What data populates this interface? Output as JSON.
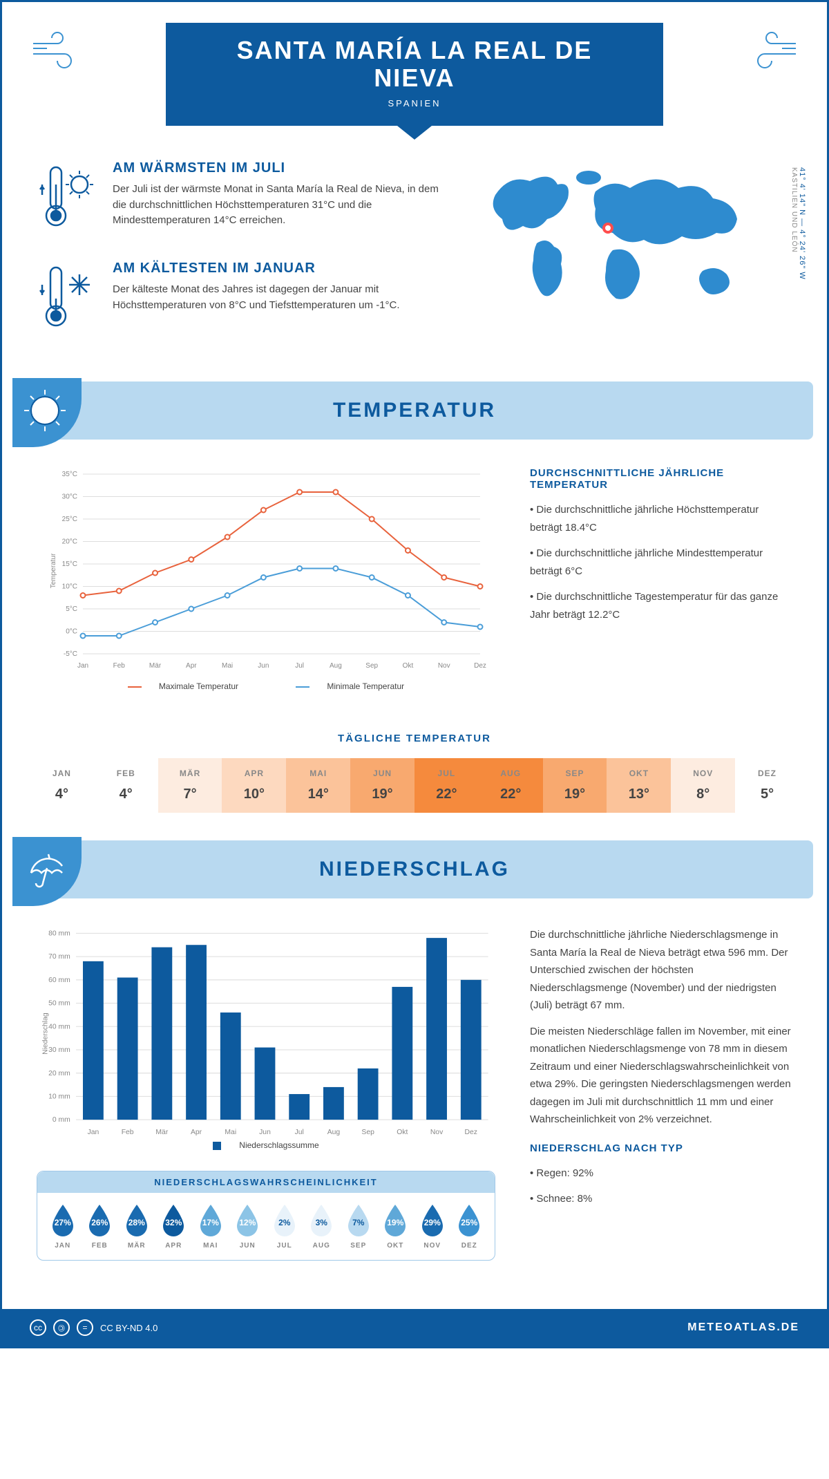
{
  "header": {
    "title": "SANTA MARÍA LA REAL DE NIEVA",
    "country": "SPANIEN",
    "coords": "41° 4' 14\" N — 4° 24' 26\" W",
    "region": "KASTILIEN UND LEÓN"
  },
  "warmest": {
    "title": "AM WÄRMSTEN IM JULI",
    "text": "Der Juli ist der wärmste Monat in Santa María la Real de Nieva, in dem die durchschnittlichen Höchsttemperaturen 31°C und die Mindesttemperaturen 14°C erreichen."
  },
  "coldest": {
    "title": "AM KÄLTESTEN IM JANUAR",
    "text": "Der kälteste Monat des Jahres ist dagegen der Januar mit Höchsttemperaturen von 8°C und Tiefsttemperaturen um -1°C."
  },
  "temp_section": {
    "heading": "TEMPERATUR",
    "chart": {
      "months": [
        "Jan",
        "Feb",
        "Mär",
        "Apr",
        "Mai",
        "Jun",
        "Jul",
        "Aug",
        "Sep",
        "Okt",
        "Nov",
        "Dez"
      ],
      "max_values": [
        8,
        9,
        13,
        16,
        21,
        27,
        31,
        31,
        25,
        18,
        12,
        10
      ],
      "min_values": [
        -1,
        -1,
        2,
        5,
        8,
        12,
        14,
        14,
        12,
        8,
        2,
        1
      ],
      "ymin": -5,
      "ymax": 35,
      "ystep": 5,
      "max_color": "#e8623c",
      "min_color": "#4a9dd8",
      "grid_color": "#dddddd",
      "ylabel": "Temperatur",
      "legend_max": "Maximale Temperatur",
      "legend_min": "Minimale Temperatur"
    },
    "side_title": "DURCHSCHNITTLICHE JÄHRLICHE TEMPERATUR",
    "side_bullets": [
      "• Die durchschnittliche jährliche Höchsttemperatur beträgt 18.4°C",
      "• Die durchschnittliche jährliche Mindesttemperatur beträgt 6°C",
      "• Die durchschnittliche Tagestemperatur für das ganze Jahr beträgt 12.2°C"
    ],
    "daily_title": "TÄGLICHE TEMPERATUR",
    "daily": {
      "months": [
        "JAN",
        "FEB",
        "MÄR",
        "APR",
        "MAI",
        "JUN",
        "JUL",
        "AUG",
        "SEP",
        "OKT",
        "NOV",
        "DEZ"
      ],
      "values": [
        "4°",
        "4°",
        "7°",
        "10°",
        "14°",
        "19°",
        "22°",
        "22°",
        "19°",
        "13°",
        "8°",
        "5°"
      ],
      "colors": [
        "#ffffff",
        "#ffffff",
        "#fdece0",
        "#fdd9bf",
        "#fbc39a",
        "#f8a96f",
        "#f58a3d",
        "#f58a3d",
        "#f8a96f",
        "#fbc39a",
        "#fdece0",
        "#ffffff"
      ]
    }
  },
  "precip_section": {
    "heading": "NIEDERSCHLAG",
    "chart": {
      "months": [
        "Jan",
        "Feb",
        "Mär",
        "Apr",
        "Mai",
        "Jun",
        "Jul",
        "Aug",
        "Sep",
        "Okt",
        "Nov",
        "Dez"
      ],
      "values": [
        68,
        61,
        74,
        75,
        46,
        31,
        11,
        14,
        22,
        57,
        78,
        60
      ],
      "ymin": 0,
      "ymax": 80,
      "ystep": 10,
      "bar_color": "#0d5a9e",
      "grid_color": "#dddddd",
      "ylabel": "Niederschlag",
      "legend": "Niederschlagssumme"
    },
    "side_p1": "Die durchschnittliche jährliche Niederschlagsmenge in Santa María la Real de Nieva beträgt etwa 596 mm. Der Unterschied zwischen der höchsten Niederschlagsmenge (November) und der niedrigsten (Juli) beträgt 67 mm.",
    "side_p2": "Die meisten Niederschläge fallen im November, mit einer monatlichen Niederschlagsmenge von 78 mm in diesem Zeitraum und einer Niederschlagswahrscheinlichkeit von etwa 29%. Die geringsten Niederschlagsmengen werden dagegen im Juli mit durchschnittlich 11 mm und einer Wahrscheinlichkeit von 2% verzeichnet.",
    "type_title": "NIEDERSCHLAG NACH TYP",
    "type_bullets": [
      "• Regen: 92%",
      "• Schnee: 8%"
    ],
    "prob_title": "NIEDERSCHLAGSWAHRSCHEINLICHKEIT",
    "prob": {
      "months": [
        "JAN",
        "FEB",
        "MÄR",
        "APR",
        "MAI",
        "JUN",
        "JUL",
        "AUG",
        "SEP",
        "OKT",
        "NOV",
        "DEZ"
      ],
      "values": [
        27,
        26,
        28,
        32,
        17,
        12,
        2,
        3,
        7,
        19,
        29,
        25
      ],
      "colors": [
        "#1a6bb0",
        "#1a6bb0",
        "#1a6bb0",
        "#0d5a9e",
        "#5fa8d8",
        "#8cc4e6",
        "#e8f2fa",
        "#e8f2fa",
        "#b8d9f0",
        "#5fa8d8",
        "#1a6bb0",
        "#3b92d1"
      ],
      "text_colors": [
        "#fff",
        "#fff",
        "#fff",
        "#fff",
        "#fff",
        "#fff",
        "#0d5a9e",
        "#0d5a9e",
        "#0d5a9e",
        "#fff",
        "#fff",
        "#fff"
      ]
    }
  },
  "footer": {
    "license": "CC BY-ND 4.0",
    "site": "METEOATLAS.DE"
  },
  "colors": {
    "primary": "#0d5a9e",
    "light_blue": "#b8d9f0",
    "mid_blue": "#3b92d1"
  }
}
